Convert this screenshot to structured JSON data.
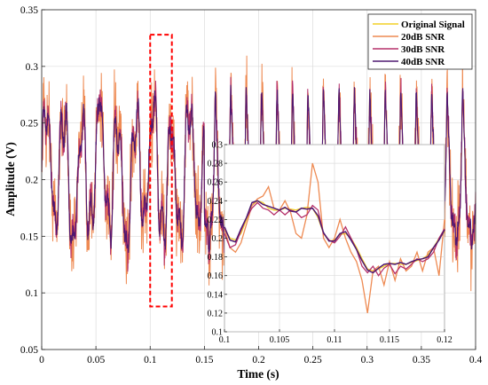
{
  "chart_data": {
    "type": "line",
    "xlabel": "Time (s)",
    "ylabel": "Amplitude (V)",
    "xlim": [
      0,
      0.4
    ],
    "ylim": [
      0.05,
      0.35
    ],
    "x_ticks": [
      "0",
      "0.05",
      "0.1",
      "0.15",
      "0.2",
      "0.25",
      "0.3",
      "0.35",
      "0.4"
    ],
    "y_ticks": [
      "0.05",
      "0.1",
      "0.15",
      "0.2",
      "0.25",
      "0.3",
      "0.35"
    ],
    "grid": true,
    "legend_position": "top-right",
    "series": [
      {
        "name": "Original Signal",
        "color": "#f2d027"
      },
      {
        "name": "20dB SNR",
        "color": "#ee8a52"
      },
      {
        "name": "30dB SNR",
        "color": "#b5306a"
      },
      {
        "name": "40dB SNR",
        "color": "#4e1870"
      }
    ],
    "highlight_region": {
      "x": [
        0.1,
        0.12
      ],
      "y": [
        0.088,
        0.328
      ],
      "style": "red-dashed"
    },
    "inset": {
      "xlim": [
        0.1,
        0.12
      ],
      "ylim": [
        0.1,
        0.3
      ],
      "x_ticks": [
        "0.1",
        "0.105",
        "0.11",
        "0.115",
        "0.12"
      ],
      "y_ticks": [
        "0.1",
        "0.12",
        "0.14",
        "0.16",
        "0.18",
        "0.2",
        "0.22",
        "0.24",
        "0.26",
        "0.28",
        "0.3"
      ],
      "x": [
        0.1,
        0.1005,
        0.101,
        0.1015,
        0.102,
        0.1025,
        0.103,
        0.1035,
        0.104,
        0.1045,
        0.105,
        0.1055,
        0.106,
        0.1065,
        0.107,
        0.1075,
        0.108,
        0.1085,
        0.109,
        0.1095,
        0.11,
        0.1105,
        0.111,
        0.1115,
        0.112,
        0.1125,
        0.113,
        0.1135,
        0.114,
        0.1145,
        0.115,
        0.1155,
        0.116,
        0.1165,
        0.117,
        0.1175,
        0.118,
        0.1185,
        0.119,
        0.1195,
        0.12
      ],
      "original": [
        0.21,
        0.2,
        0.198,
        0.205,
        0.22,
        0.235,
        0.24,
        0.238,
        0.232,
        0.23,
        0.23,
        0.232,
        0.231,
        0.23,
        0.232,
        0.233,
        0.232,
        0.222,
        0.205,
        0.197,
        0.198,
        0.204,
        0.205,
        0.2,
        0.19,
        0.178,
        0.167,
        0.165,
        0.167,
        0.17,
        0.173,
        0.173,
        0.172,
        0.172,
        0.174,
        0.176,
        0.178,
        0.182,
        0.19,
        0.2,
        0.207
      ],
      "snr20": [
        0.21,
        0.19,
        0.185,
        0.195,
        0.215,
        0.235,
        0.242,
        0.245,
        0.255,
        0.232,
        0.23,
        0.24,
        0.228,
        0.205,
        0.2,
        0.225,
        0.28,
        0.26,
        0.2,
        0.19,
        0.2,
        0.22,
        0.2,
        0.185,
        0.175,
        0.155,
        0.12,
        0.165,
        0.17,
        0.15,
        0.175,
        0.155,
        0.178,
        0.165,
        0.17,
        0.185,
        0.165,
        0.185,
        0.19,
        0.16,
        0.22
      ],
      "snr30": [
        0.205,
        0.19,
        0.193,
        0.208,
        0.222,
        0.232,
        0.238,
        0.232,
        0.23,
        0.225,
        0.23,
        0.225,
        0.23,
        0.228,
        0.222,
        0.225,
        0.235,
        0.23,
        0.205,
        0.198,
        0.195,
        0.202,
        0.212,
        0.2,
        0.188,
        0.17,
        0.163,
        0.17,
        0.16,
        0.168,
        0.172,
        0.162,
        0.17,
        0.167,
        0.172,
        0.178,
        0.175,
        0.178,
        0.185,
        0.2,
        0.21
      ],
      "snr40": [
        0.212,
        0.198,
        0.196,
        0.21,
        0.222,
        0.238,
        0.24,
        0.236,
        0.234,
        0.232,
        0.23,
        0.233,
        0.229,
        0.228,
        0.232,
        0.231,
        0.232,
        0.224,
        0.206,
        0.197,
        0.197,
        0.205,
        0.207,
        0.198,
        0.188,
        0.176,
        0.166,
        0.163,
        0.168,
        0.172,
        0.173,
        0.172,
        0.174,
        0.172,
        0.175,
        0.177,
        0.178,
        0.18,
        0.19,
        0.198,
        0.209
      ]
    }
  }
}
